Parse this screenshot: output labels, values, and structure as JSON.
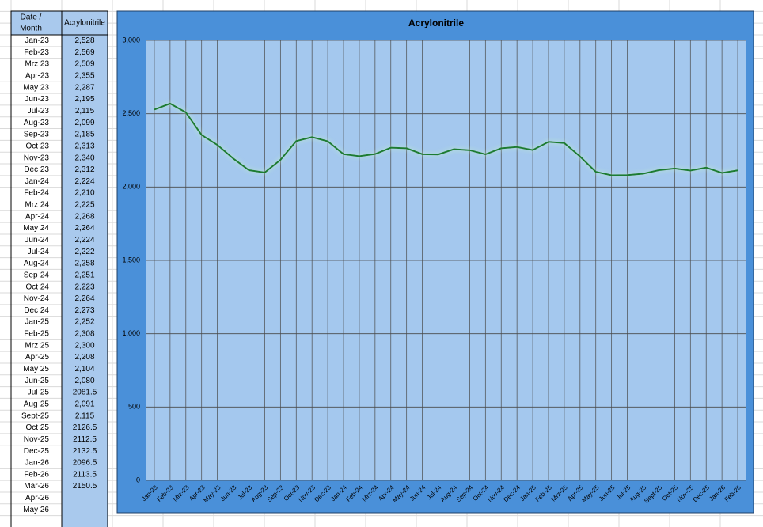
{
  "table": {
    "header": {
      "date": [
        "Date /",
        "Month"
      ],
      "value": "Acrylonitrile"
    },
    "rows": [
      [
        "Jan-23",
        "2,528"
      ],
      [
        "Feb-23",
        "2,569"
      ],
      [
        "Mrz 23",
        "2,509"
      ],
      [
        "Apr-23",
        "2,355"
      ],
      [
        "May 23",
        "2,287"
      ],
      [
        "Jun-23",
        "2,195"
      ],
      [
        "Jul-23",
        "2,115"
      ],
      [
        "Aug-23",
        "2,099"
      ],
      [
        "Sep-23",
        "2,185"
      ],
      [
        "Oct 23",
        "2,313"
      ],
      [
        "Nov-23",
        "2,340"
      ],
      [
        "Dec 23",
        "2,312"
      ],
      [
        "Jan-24",
        "2,224"
      ],
      [
        "Feb-24",
        "2,210"
      ],
      [
        "Mrz 24",
        "2,225"
      ],
      [
        "Apr-24",
        "2,268"
      ],
      [
        "May 24",
        "2,264"
      ],
      [
        "Jun-24",
        "2,224"
      ],
      [
        "Jul-24",
        "2,222"
      ],
      [
        "Aug-24",
        "2,258"
      ],
      [
        "Sep-24",
        "2,251"
      ],
      [
        "Oct 24",
        "2,223"
      ],
      [
        "Nov-24",
        "2,264"
      ],
      [
        "Dec 24",
        "2,273"
      ],
      [
        "Jan-25",
        "2,252"
      ],
      [
        "Feb-25",
        "2,308"
      ],
      [
        "Mrz 25",
        "2,300"
      ],
      [
        "Apr-25",
        "2,208"
      ],
      [
        "May 25",
        "2,104"
      ],
      [
        "Jun-25",
        "2,080"
      ],
      [
        "Jul-25",
        "2081.5"
      ],
      [
        "Aug-25",
        "2,091"
      ],
      [
        "Sept-25",
        "2,115"
      ],
      [
        "Oct 25",
        "2126.5"
      ],
      [
        "Nov-25",
        "2112.5"
      ],
      [
        "Dec-25",
        "2132.5"
      ],
      [
        "Jan-26",
        "2096.5"
      ],
      [
        "Feb-26",
        "2113.5"
      ],
      [
        "Mar-26",
        "2150.5"
      ],
      [
        "Apr-26"
      ],
      [
        "May 26"
      ]
    ]
  },
  "chart_data": {
    "type": "line",
    "title": "Acrylonitrile",
    "categories": [
      "Jan-23",
      "Feb-23",
      "Mrz-23",
      "Apr-23",
      "May-23",
      "Jun-23",
      "Jul-23",
      "Aug-23",
      "Sep-23",
      "Oct-23",
      "Nov-23",
      "Dec-23",
      "Jan-24",
      "Feb-24",
      "Mrz-24",
      "Apr-24",
      "May-24",
      "Jun-24",
      "Jul-24",
      "Aug-24",
      "Sep-24",
      "Oct-24",
      "Nov-24",
      "Dec-24",
      "Jan-25",
      "Feb-25",
      "Mrz-25",
      "Apr-25",
      "May-25",
      "Jun-25",
      "Jul-25",
      "Aug-25",
      "Sept-25",
      "Oct-25",
      "Nov-25",
      "Dec-25",
      "Jan-26",
      "Feb-26"
    ],
    "series": [
      {
        "name": "Acrylonitrile",
        "color": "#1e7b30",
        "values": [
          2528,
          2569,
          2509,
          2355,
          2287,
          2195,
          2115,
          2099,
          2185,
          2313,
          2340,
          2312,
          2224,
          2210,
          2225,
          2268,
          2264,
          2224,
          2222,
          2258,
          2251,
          2223,
          2264,
          2273,
          2252,
          2308,
          2300,
          2208,
          2104,
          2080,
          2081.5,
          2091,
          2115,
          2126.5,
          2112.5,
          2132.5,
          2096.5,
          2113.5
        ]
      }
    ],
    "ylim": [
      0,
      3000
    ],
    "yticks": [
      0,
      500,
      {
        "value": 1000,
        "label": "1,000"
      },
      {
        "value": 1500,
        "label": "1,500"
      },
      {
        "value": 2000,
        "label": "2,000"
      },
      {
        "value": 2500,
        "label": "2,500"
      },
      {
        "value": 3000,
        "label": "3,000"
      }
    ],
    "grid": true
  }
}
